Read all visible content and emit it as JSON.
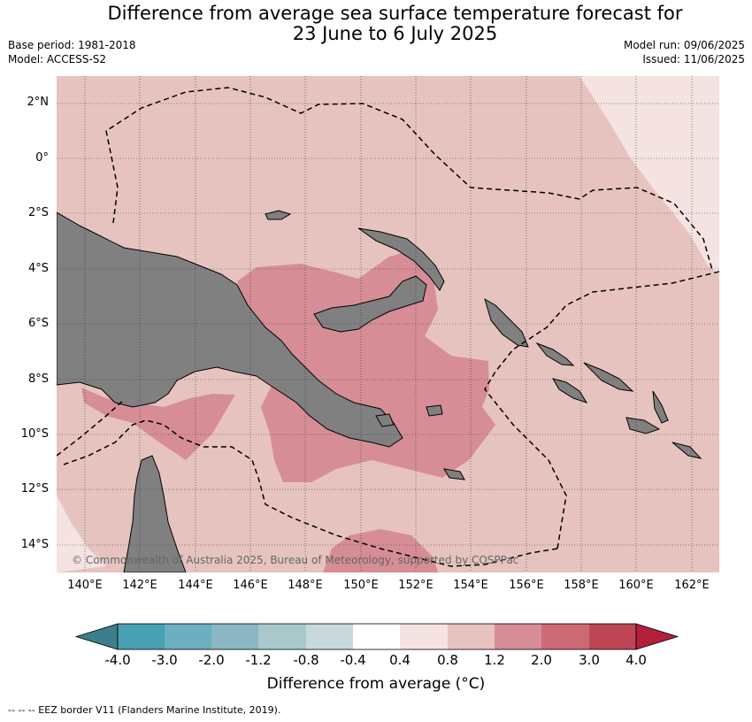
{
  "title_line1": "Difference from average sea surface temperature forecast for",
  "title_line2": "23 June to 6 July 2025",
  "base_period": "Base period: 1981-2018",
  "model": "Model: ACCESS-S2",
  "model_run": "Model run: 09/06/2025",
  "issued": "Issued: 11/06/2025",
  "lat_labels": [
    "2°N",
    "0°",
    "2°S",
    "4°S",
    "6°S",
    "8°S",
    "10°S",
    "12°S",
    "14°S"
  ],
  "lon_labels": [
    "140°E",
    "142°E",
    "144°E",
    "146°E",
    "148°E",
    "150°E",
    "152°E",
    "154°E",
    "156°E",
    "158°E",
    "160°E",
    "162°E"
  ],
  "copyright": "© Commonwealth of Australia 2025, Bureau of Meteorology, supported by COSPPac",
  "colorbar": {
    "title": "Difference from average (°C)",
    "ticks": [
      "-4.0",
      "-3.0",
      "-2.0",
      "-1.2",
      "-0.8",
      "-0.4",
      "0.4",
      "0.8",
      "1.2",
      "2.0",
      "3.0",
      "4.0"
    ],
    "colors": [
      "#3c7f8c",
      "#48a0b4",
      "#6bafc0",
      "#8ab7c3",
      "#a8c8cc",
      "#c8d9da",
      "#ffffff",
      "#f4e3e1",
      "#e6c3bf",
      "#d68d96",
      "#cd6a74",
      "#bf4654",
      "#b41f3c"
    ]
  },
  "footnote": "--  --  -- EEZ border V11 (Flanders Marine Institute, 2019)."
}
